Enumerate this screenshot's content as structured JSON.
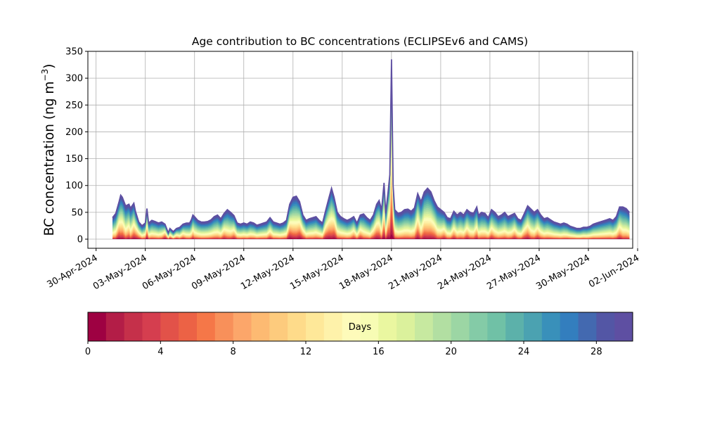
{
  "chart_data": {
    "type": "area",
    "stacked": true,
    "title": "Age contribution to BC concentrations (ECLIPSEv6 and CAMS)",
    "ylabel_main": "BC concentration (ng m",
    "ylabel_sup": "−3",
    "ylabel_close": ")",
    "xlabel": "",
    "ylim": [
      -17,
      350
    ],
    "xlim_days": [
      -0.5,
      32.7
    ],
    "x_start_label": "30-Apr-2024",
    "yticks": [
      0,
      50,
      100,
      150,
      200,
      250,
      300,
      350
    ],
    "xticks": [
      {
        "day": 0,
        "label": "30-Apr-2024"
      },
      {
        "day": 3,
        "label": "03-May-2024"
      },
      {
        "day": 6,
        "label": "06-May-2024"
      },
      {
        "day": 9,
        "label": "09-May-2024"
      },
      {
        "day": 12,
        "label": "12-May-2024"
      },
      {
        "day": 15,
        "label": "15-May-2024"
      },
      {
        "day": 18,
        "label": "18-May-2024"
      },
      {
        "day": 21,
        "label": "21-May-2024"
      },
      {
        "day": 24,
        "label": "24-May-2024"
      },
      {
        "day": 27,
        "label": "27-May-2024"
      },
      {
        "day": 30,
        "label": "30-May-2024"
      },
      {
        "day": 33,
        "label": "02-Jun-2024"
      }
    ],
    "grid": true,
    "total_series": [
      [
        1.0,
        40
      ],
      [
        1.2,
        48
      ],
      [
        1.4,
        70
      ],
      [
        1.5,
        82
      ],
      [
        1.6,
        78
      ],
      [
        1.8,
        62
      ],
      [
        2.0,
        65
      ],
      [
        2.1,
        58
      ],
      [
        2.3,
        67
      ],
      [
        2.4,
        52
      ],
      [
        2.6,
        32
      ],
      [
        2.8,
        25
      ],
      [
        3.0,
        30
      ],
      [
        3.1,
        57
      ],
      [
        3.2,
        30
      ],
      [
        3.4,
        35
      ],
      [
        3.6,
        33
      ],
      [
        3.8,
        30
      ],
      [
        4.0,
        32
      ],
      [
        4.2,
        28
      ],
      [
        4.4,
        12
      ],
      [
        4.5,
        20
      ],
      [
        4.7,
        14
      ],
      [
        4.9,
        20
      ],
      [
        5.1,
        22
      ],
      [
        5.3,
        28
      ],
      [
        5.5,
        30
      ],
      [
        5.7,
        30
      ],
      [
        5.8,
        36
      ],
      [
        5.9,
        45
      ],
      [
        6.0,
        42
      ],
      [
        6.2,
        35
      ],
      [
        6.4,
        32
      ],
      [
        6.6,
        32
      ],
      [
        6.8,
        33
      ],
      [
        7.0,
        36
      ],
      [
        7.2,
        42
      ],
      [
        7.4,
        45
      ],
      [
        7.6,
        38
      ],
      [
        7.8,
        48
      ],
      [
        8.0,
        55
      ],
      [
        8.2,
        50
      ],
      [
        8.4,
        44
      ],
      [
        8.6,
        30
      ],
      [
        8.8,
        28
      ],
      [
        9.0,
        30
      ],
      [
        9.2,
        28
      ],
      [
        9.4,
        32
      ],
      [
        9.6,
        30
      ],
      [
        9.8,
        26
      ],
      [
        10.0,
        28
      ],
      [
        10.2,
        30
      ],
      [
        10.4,
        32
      ],
      [
        10.6,
        40
      ],
      [
        10.8,
        32
      ],
      [
        11.0,
        30
      ],
      [
        11.2,
        28
      ],
      [
        11.4,
        30
      ],
      [
        11.6,
        35
      ],
      [
        11.8,
        65
      ],
      [
        12.0,
        78
      ],
      [
        12.2,
        80
      ],
      [
        12.4,
        70
      ],
      [
        12.6,
        45
      ],
      [
        12.8,
        35
      ],
      [
        13.0,
        38
      ],
      [
        13.2,
        40
      ],
      [
        13.4,
        42
      ],
      [
        13.6,
        35
      ],
      [
        13.8,
        30
      ],
      [
        14.0,
        55
      ],
      [
        14.2,
        78
      ],
      [
        14.35,
        95
      ],
      [
        14.5,
        78
      ],
      [
        14.7,
        50
      ],
      [
        14.9,
        42
      ],
      [
        15.1,
        38
      ],
      [
        15.3,
        35
      ],
      [
        15.5,
        38
      ],
      [
        15.7,
        42
      ],
      [
        15.9,
        30
      ],
      [
        16.1,
        45
      ],
      [
        16.3,
        47
      ],
      [
        16.5,
        40
      ],
      [
        16.7,
        35
      ],
      [
        16.9,
        45
      ],
      [
        17.1,
        65
      ],
      [
        17.25,
        72
      ],
      [
        17.4,
        55
      ],
      [
        17.55,
        105
      ],
      [
        17.65,
        48
      ],
      [
        17.8,
        90
      ],
      [
        17.9,
        120
      ],
      [
        18.0,
        335
      ],
      [
        18.1,
        100
      ],
      [
        18.2,
        55
      ],
      [
        18.4,
        48
      ],
      [
        18.6,
        50
      ],
      [
        18.8,
        55
      ],
      [
        19.0,
        56
      ],
      [
        19.2,
        52
      ],
      [
        19.4,
        58
      ],
      [
        19.6,
        85
      ],
      [
        19.8,
        70
      ],
      [
        20.0,
        88
      ],
      [
        20.2,
        95
      ],
      [
        20.4,
        88
      ],
      [
        20.6,
        72
      ],
      [
        20.8,
        60
      ],
      [
        21.0,
        55
      ],
      [
        21.2,
        50
      ],
      [
        21.4,
        40
      ],
      [
        21.6,
        38
      ],
      [
        21.8,
        52
      ],
      [
        22.0,
        45
      ],
      [
        22.2,
        50
      ],
      [
        22.4,
        45
      ],
      [
        22.6,
        55
      ],
      [
        22.8,
        50
      ],
      [
        23.0,
        48
      ],
      [
        23.2,
        60
      ],
      [
        23.3,
        45
      ],
      [
        23.5,
        50
      ],
      [
        23.7,
        48
      ],
      [
        23.9,
        40
      ],
      [
        24.1,
        55
      ],
      [
        24.3,
        50
      ],
      [
        24.5,
        42
      ],
      [
        24.7,
        45
      ],
      [
        24.9,
        50
      ],
      [
        25.1,
        42
      ],
      [
        25.3,
        45
      ],
      [
        25.5,
        48
      ],
      [
        25.7,
        38
      ],
      [
        25.9,
        35
      ],
      [
        26.1,
        48
      ],
      [
        26.3,
        62
      ],
      [
        26.5,
        56
      ],
      [
        26.7,
        50
      ],
      [
        26.9,
        55
      ],
      [
        27.1,
        45
      ],
      [
        27.3,
        38
      ],
      [
        27.5,
        40
      ],
      [
        27.7,
        36
      ],
      [
        27.9,
        32
      ],
      [
        28.1,
        30
      ],
      [
        28.3,
        28
      ],
      [
        28.5,
        30
      ],
      [
        28.7,
        28
      ],
      [
        28.9,
        24
      ],
      [
        29.1,
        22
      ],
      [
        29.3,
        20
      ],
      [
        29.5,
        20
      ],
      [
        29.7,
        22
      ],
      [
        29.9,
        22
      ],
      [
        30.1,
        24
      ],
      [
        30.3,
        28
      ],
      [
        30.5,
        30
      ],
      [
        30.7,
        32
      ],
      [
        30.9,
        34
      ],
      [
        31.1,
        36
      ],
      [
        31.3,
        38
      ],
      [
        31.5,
        35
      ],
      [
        31.7,
        42
      ],
      [
        31.9,
        60
      ],
      [
        32.1,
        60
      ],
      [
        32.3,
        57
      ],
      [
        32.5,
        50
      ]
    ],
    "colorbar": {
      "label": "Days",
      "min": 0,
      "max": 30,
      "ticks": [
        0,
        4,
        8,
        12,
        16,
        20,
        24,
        28
      ],
      "colors": [
        "#9e0142",
        "#b31d47",
        "#c5304a",
        "#d53e4f",
        "#e25249",
        "#ec6245",
        "#f57748",
        "#f8905a",
        "#fca66a",
        "#fdba72",
        "#fdcb7d",
        "#fedb8a",
        "#fee899",
        "#fef2aa",
        "#fefbba",
        "#f7fcb4",
        "#eaf7a0",
        "#dbf19c",
        "#c7e9a0",
        "#b2dfa2",
        "#9cd6a4",
        "#84cba7",
        "#70c1a6",
        "#5cb1aa",
        "#4ba2b1",
        "#3990ba",
        "#337ebe",
        "#4369b0",
        "#5356a5",
        "#5e4fa2"
      ]
    }
  }
}
